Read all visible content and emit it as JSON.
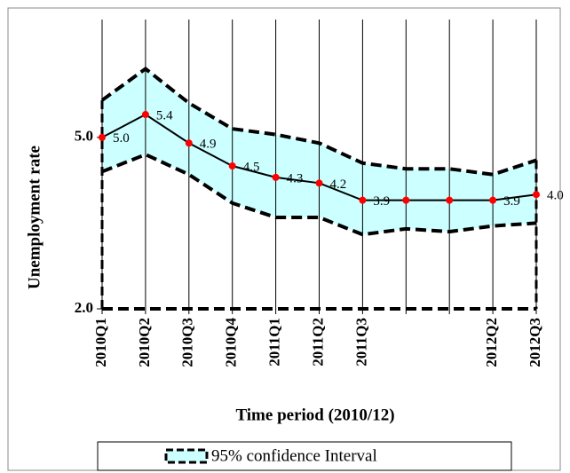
{
  "chart_data": {
    "type": "line",
    "x_label": "Time period (2010/12)",
    "y_label": "Unemployment rate",
    "categories": [
      "2010Q1",
      "2010Q2",
      "2010Q3",
      "2010Q4",
      "2011Q1",
      "2011Q2",
      "2011Q3",
      null,
      null,
      "2012Q2",
      "2012Q3"
    ],
    "values": [
      5.0,
      5.4,
      4.9,
      4.5,
      4.3,
      4.2,
      3.9,
      3.9,
      3.9,
      3.9,
      4.0
    ],
    "value_labels": [
      "5.0",
      "5.4",
      "4.9",
      "4.5",
      "4.3",
      "4.2",
      "3.9",
      null,
      null,
      "3.9",
      "4.0"
    ],
    "color": "#000000",
    "marker_color": "#ff0000",
    "confidence_interval": {
      "name": "95% confidence Interval",
      "color": "#ccffff",
      "upper": [
        5.65,
        6.2,
        5.6,
        5.15,
        5.05,
        4.9,
        4.55,
        4.45,
        4.45,
        4.35,
        4.6
      ],
      "lower": [
        4.4,
        4.7,
        4.35,
        3.85,
        3.6,
        3.6,
        3.3,
        3.4,
        3.35,
        3.45,
        3.5
      ]
    },
    "ylim": [
      2.0,
      7.0
    ],
    "yticks": [
      {
        "value": 2.0,
        "label": "2.0"
      },
      {
        "value": 5.0,
        "label": "5.0"
      }
    ],
    "grid": true
  }
}
